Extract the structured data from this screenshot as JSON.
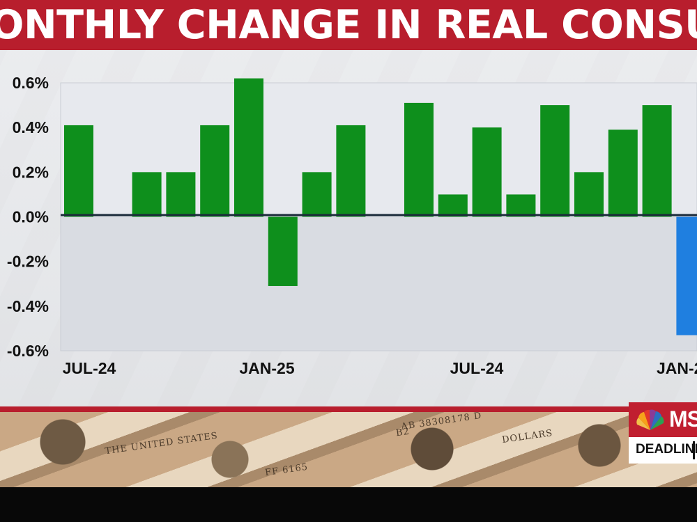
{
  "header": {
    "title": "ONTHLY CHANGE IN REAL CONSUMER SPENDING"
  },
  "colors": {
    "header_red": "#b81e2d",
    "positive_bar": "#0e8f1c",
    "negative_bar_highlight": "#1f7fe0",
    "panel": "#e6e9ee"
  },
  "chart_data": {
    "type": "bar",
    "ylim": [
      -0.6,
      0.6
    ],
    "y_ticks": [
      "0.6%",
      "0.4%",
      "0.2%",
      "0.0%",
      "-0.2%",
      "-0.4%",
      "-0.6%"
    ],
    "x_tick_labels": [
      "JUL-24",
      "JAN-25",
      "JUL-24",
      "JAN-2"
    ],
    "values": [
      0.41,
      null,
      0.2,
      0.2,
      0.41,
      0.62,
      -0.31,
      0.2,
      0.41,
      null,
      0.51,
      0.1,
      0.4,
      0.1,
      0.5,
      0.2,
      0.39,
      0.5,
      -0.53
    ],
    "bar_colors": [
      "green",
      "green",
      "green",
      "green",
      "green",
      "green",
      "green",
      "green",
      "green",
      "green",
      "green",
      "green",
      "green",
      "green",
      "green",
      "green",
      "green",
      "green",
      "blue"
    ],
    "grid": false
  },
  "logo": {
    "network": "MS",
    "show": "DEADLINE",
    "icon": "peacock-icon"
  },
  "bills": {
    "serial": "AB 38308178 D",
    "small_serial": "FF 6165",
    "code": "B2",
    "text_a": "THE UNITED STATES",
    "text_b": "DOLLARS"
  }
}
